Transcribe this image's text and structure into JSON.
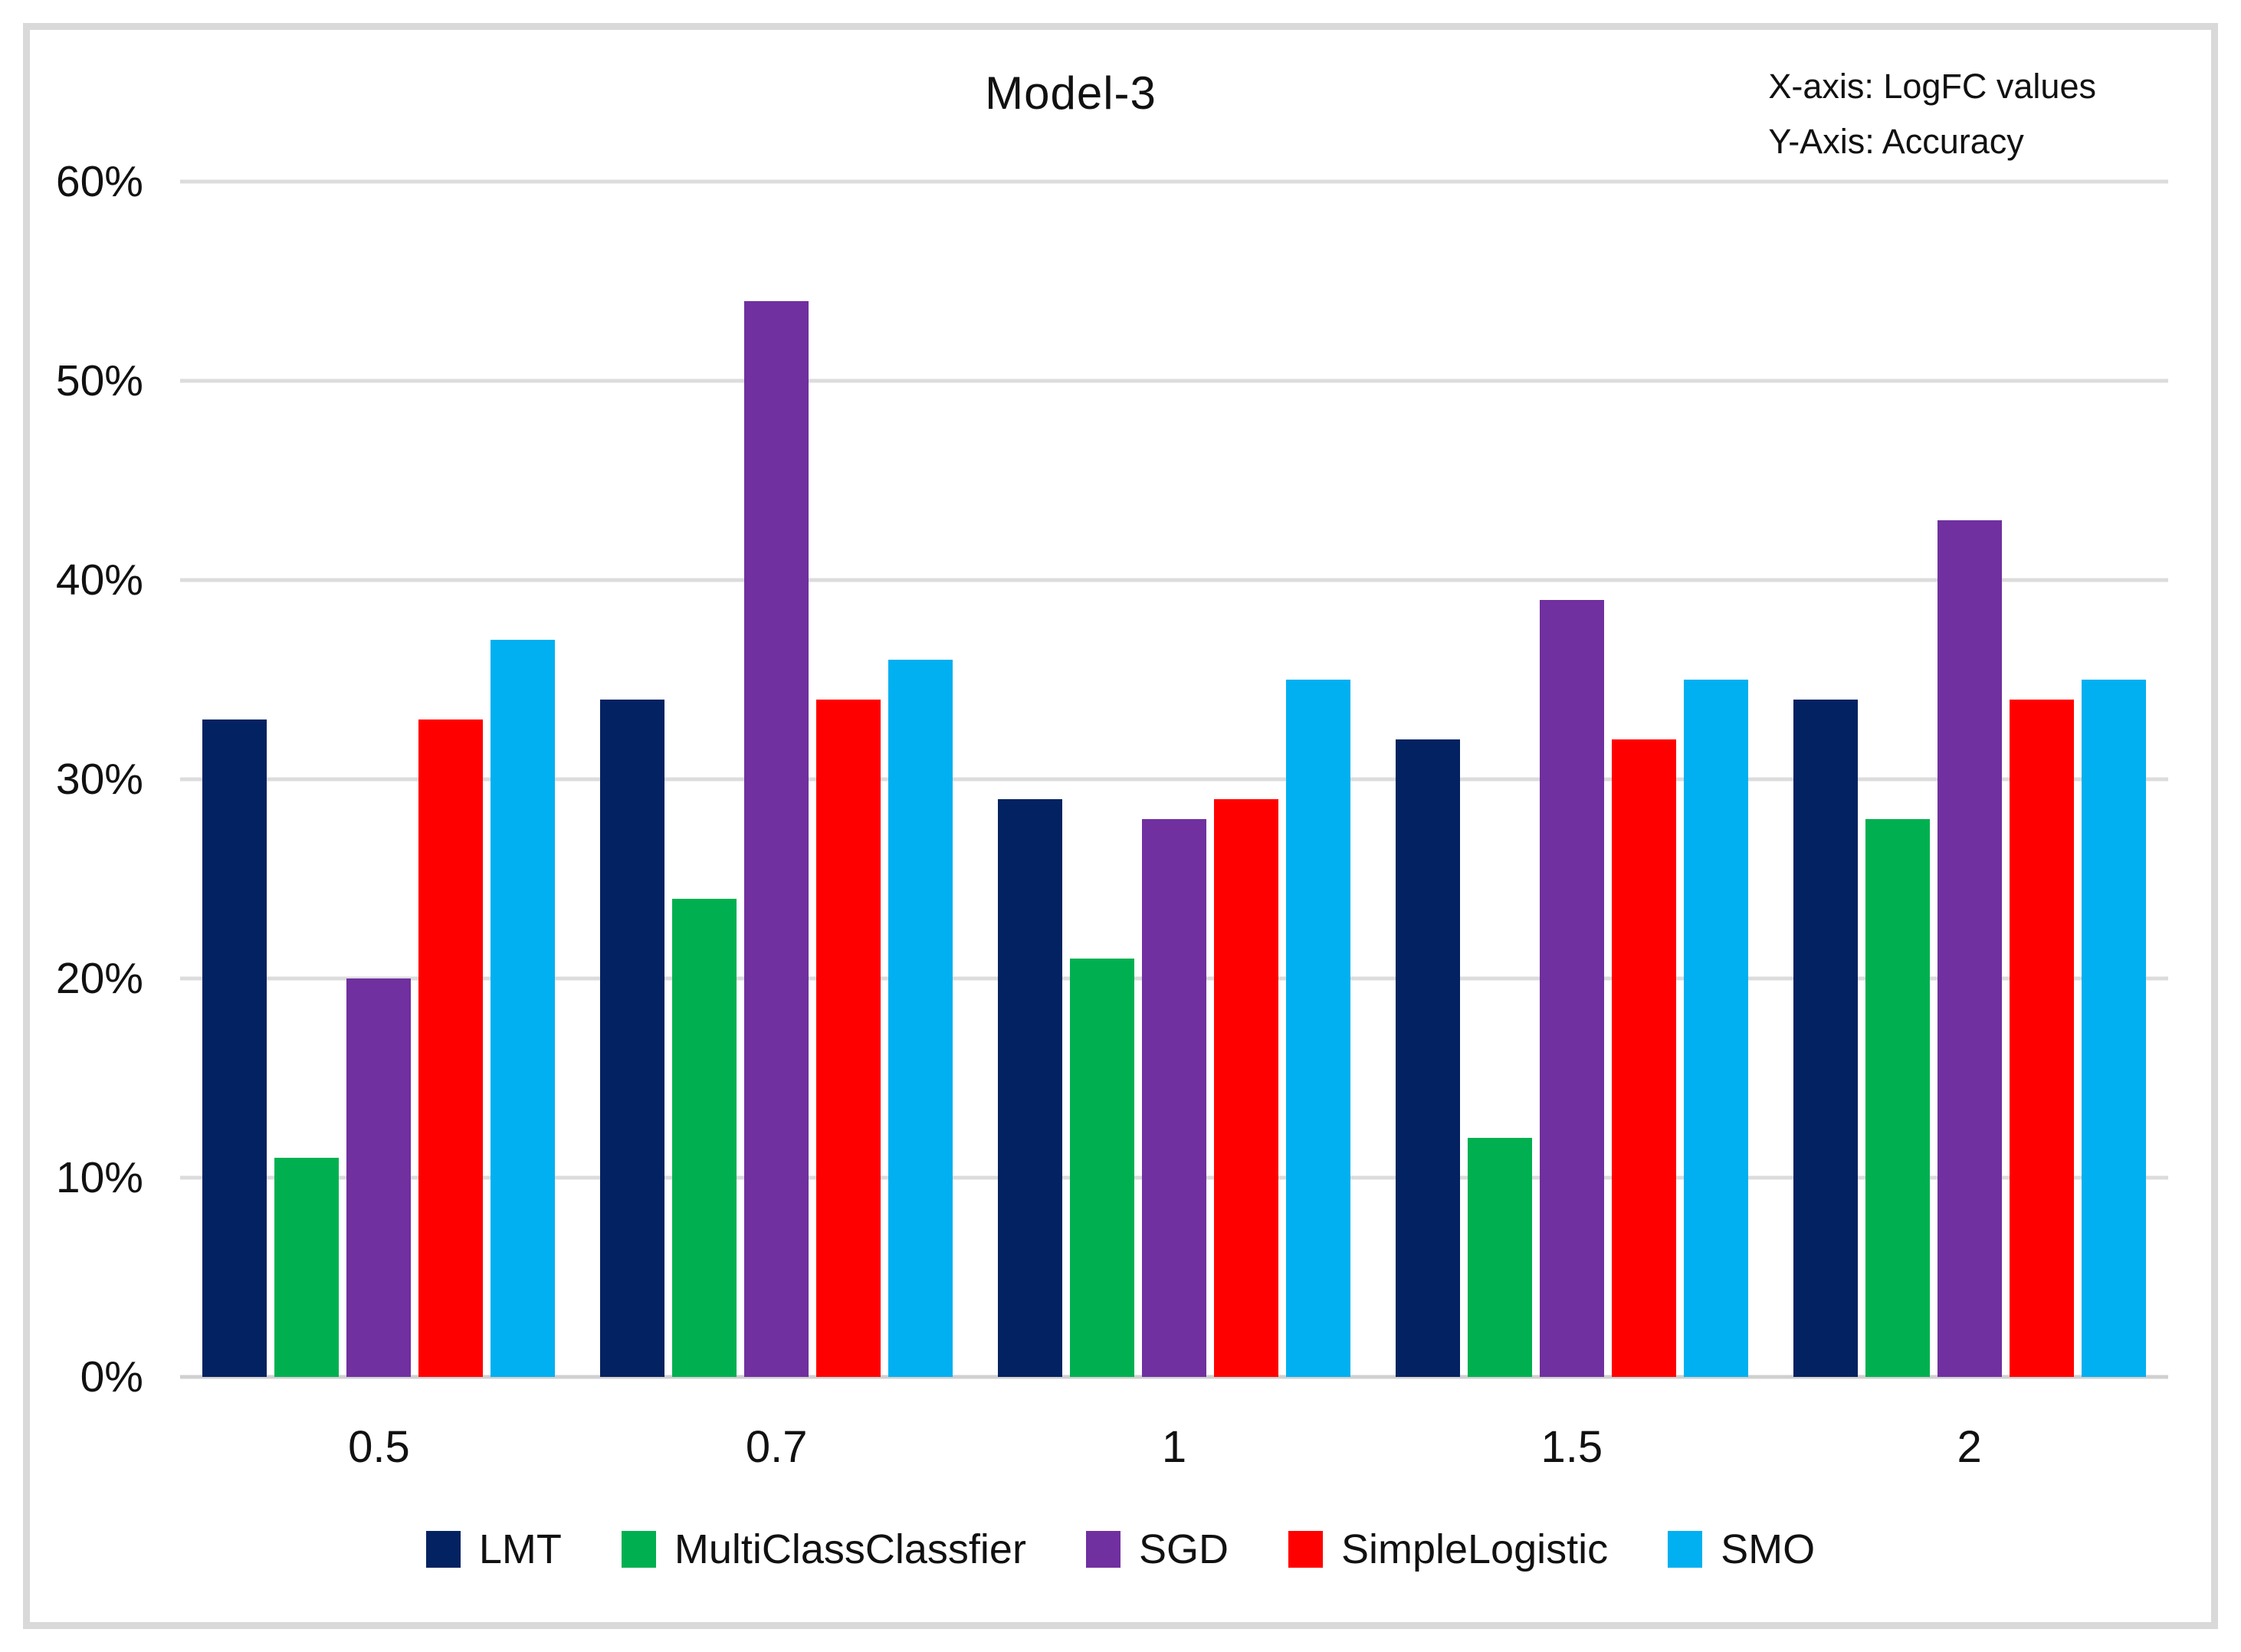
{
  "chart": {
    "title": "Model-3",
    "annotation": {
      "line1": "X-axis: LogFC values",
      "line2": "Y-Axis: Accuracy"
    }
  },
  "chart_data": {
    "type": "bar",
    "title": "Model-3",
    "xlabel": "LogFC values",
    "ylabel": "Accuracy",
    "categories": [
      "0.5",
      "0.7",
      "1",
      "1.5",
      "2"
    ],
    "series": [
      {
        "name": "LMT",
        "color": "#032261",
        "values": [
          33,
          34,
          29,
          32,
          34
        ]
      },
      {
        "name": "MultiClassClassfier",
        "color": "#00b050",
        "values": [
          11,
          24,
          21,
          12,
          28
        ]
      },
      {
        "name": "SGD",
        "color": "#7030a0",
        "values": [
          20,
          54,
          28,
          39,
          43
        ]
      },
      {
        "name": "SimpleLogistic",
        "color": "#ff0000",
        "values": [
          33,
          34,
          29,
          32,
          34
        ]
      },
      {
        "name": "SMO",
        "color": "#00b0f0",
        "values": [
          37,
          36,
          35,
          35,
          35
        ]
      }
    ],
    "ylim": [
      0,
      60
    ],
    "ytick_step": 10,
    "ytick_labels": [
      "0%",
      "10%",
      "20%",
      "30%",
      "40%",
      "50%",
      "60%"
    ],
    "grid": true,
    "legend_position": "bottom",
    "colors": {
      "gridline": "#dcdcdc",
      "axis_line": "#d0d0d0",
      "frame_border": "#d9d9d9",
      "text": "#111111"
    }
  }
}
